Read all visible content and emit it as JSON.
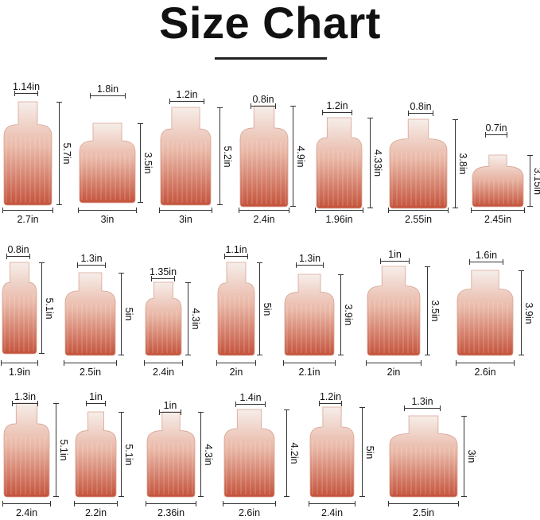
{
  "title": "Size Chart",
  "colors": {
    "glass_top": "#f6eeea",
    "glass_bottom": "#c4523b",
    "text": "#111111"
  },
  "vases": [
    {
      "opening": "1.14in",
      "height": "5.7in",
      "base": "2.7in"
    },
    {
      "opening": "1.8in",
      "height": "3.5in",
      "base": "3in"
    },
    {
      "opening": "1.2in",
      "height": "5.2in",
      "base": "3in"
    },
    {
      "opening": "0.8in",
      "height": "4.9in",
      "base": "2.4in"
    },
    {
      "opening": "1.2in",
      "height": "4.33in",
      "base": "1.96in"
    },
    {
      "opening": "0.8in",
      "height": "3.8in",
      "base": "2.55in"
    },
    {
      "opening": "0.7in",
      "height": "3.15in",
      "base": "2.45in"
    },
    {
      "opening": "0.8in",
      "height": "5.1in",
      "base": "1.9in"
    },
    {
      "opening": "1.3in",
      "height": "5in",
      "base": "2.5in"
    },
    {
      "opening": "1.35in",
      "height": "4.3in",
      "base": "2.4in"
    },
    {
      "opening": "1.1in",
      "height": "5in",
      "base": "2in"
    },
    {
      "opening": "1.3in",
      "height": "3.9in",
      "base": "2.1in"
    },
    {
      "opening": "1in",
      "height": "3.5in",
      "base": "2in"
    },
    {
      "opening": "1.6in",
      "height": "3.9in",
      "base": "2.6in"
    },
    {
      "opening": "1.3in",
      "height": "5.1in",
      "base": "2.4in"
    },
    {
      "opening": "1in",
      "height": "5.1in",
      "base": "2.2in"
    },
    {
      "opening": "1in",
      "height": "4.3in",
      "base": "2.36in"
    },
    {
      "opening": "1.4in",
      "height": "4.2in",
      "base": "2.6in"
    },
    {
      "opening": "1.2in",
      "height": "5in",
      "base": "2.4in"
    },
    {
      "opening": "1.3in",
      "height": "3in",
      "base": "2.5in"
    }
  ]
}
